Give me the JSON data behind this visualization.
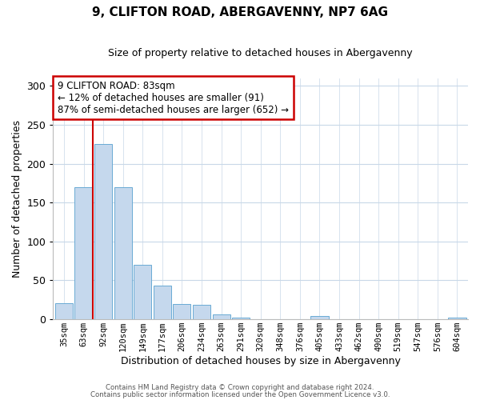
{
  "title": "9, CLIFTON ROAD, ABERGAVENNY, NP7 6AG",
  "subtitle": "Size of property relative to detached houses in Abergavenny",
  "xlabel": "Distribution of detached houses by size in Abergavenny",
  "ylabel": "Number of detached properties",
  "bar_labels": [
    "35sqm",
    "63sqm",
    "92sqm",
    "120sqm",
    "149sqm",
    "177sqm",
    "206sqm",
    "234sqm",
    "263sqm",
    "291sqm",
    "320sqm",
    "348sqm",
    "376sqm",
    "405sqm",
    "433sqm",
    "462sqm",
    "490sqm",
    "519sqm",
    "547sqm",
    "576sqm",
    "604sqm"
  ],
  "bar_values": [
    20,
    170,
    225,
    170,
    70,
    43,
    19,
    18,
    6,
    2,
    0,
    0,
    0,
    4,
    0,
    0,
    0,
    0,
    0,
    0,
    2
  ],
  "bar_color": "#c5d8ed",
  "bar_edge_color": "#6aaad4",
  "vline_x_idx": 1,
  "vline_color": "#cc0000",
  "annotation_title": "9 CLIFTON ROAD: 83sqm",
  "annotation_line1": "← 12% of detached houses are smaller (91)",
  "annotation_line2": "87% of semi-detached houses are larger (652) →",
  "annotation_box_color": "#ffffff",
  "annotation_box_edge": "#cc0000",
  "ylim": [
    0,
    310
  ],
  "yticks": [
    0,
    50,
    100,
    150,
    200,
    250,
    300
  ],
  "footer1": "Contains HM Land Registry data © Crown copyright and database right 2024.",
  "footer2": "Contains public sector information licensed under the Open Government Licence v3.0.",
  "bg_color": "#ffffff",
  "grid_color": "#c8d8e8"
}
